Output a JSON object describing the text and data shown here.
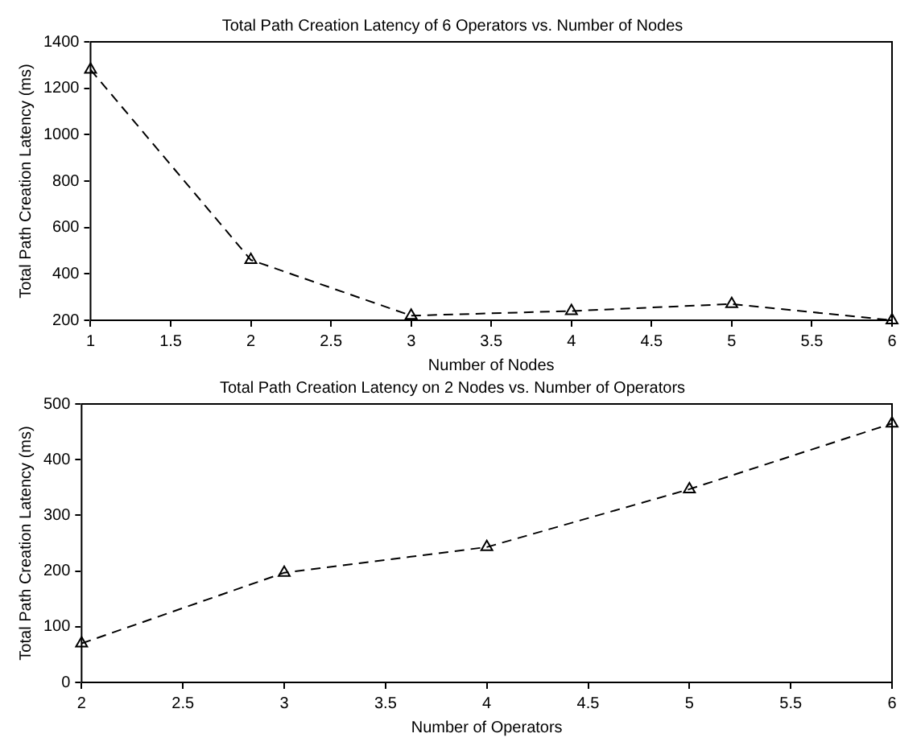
{
  "chart_data": [
    {
      "type": "line",
      "title": "Total Path Creation Latency of 6 Operators vs. Number of Nodes",
      "xlabel": "Number of Nodes",
      "ylabel": "Total Path Creation Latency (ms)",
      "x": [
        1,
        2,
        3,
        4,
        5,
        6
      ],
      "series": [
        {
          "color": "#000000",
          "values": [
            1280,
            460,
            220,
            240,
            270,
            200
          ]
        }
      ],
      "xlim": [
        1,
        6
      ],
      "xticks": [
        1,
        1.5,
        2,
        2.5,
        3,
        3.5,
        4,
        4.5,
        5,
        5.5,
        6
      ],
      "ylim": [
        200,
        1400
      ],
      "yticks": [
        200,
        400,
        600,
        800,
        1000,
        1200,
        1400
      ],
      "grid": false,
      "legend": false,
      "marker": "triangle",
      "line_style": "dashed"
    },
    {
      "type": "line",
      "title": "Total Path Creation Latency on 2 Nodes vs. Number of Operators",
      "xlabel": "Number of Operators",
      "ylabel": "Total Path Creation Latency (ms)",
      "x": [
        2,
        3,
        4,
        5,
        6
      ],
      "series": [
        {
          "color": "#000000",
          "values": [
            70,
            197,
            243,
            347,
            465
          ]
        }
      ],
      "xlim": [
        2,
        6
      ],
      "xticks": [
        2,
        2.5,
        3,
        3.5,
        4,
        4.5,
        5,
        5.5,
        6
      ],
      "ylim": [
        0,
        500
      ],
      "yticks": [
        0,
        100,
        200,
        300,
        400,
        500
      ],
      "grid": false,
      "legend": false,
      "marker": "triangle",
      "line_style": "dashed"
    }
  ]
}
